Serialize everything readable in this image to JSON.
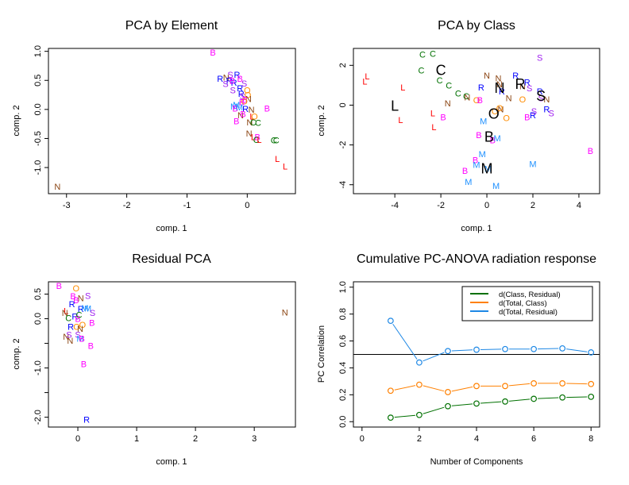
{
  "colors": {
    "B": "#ff00ff",
    "C": "#007000",
    "L": "#ff0000",
    "M": "#1e90ff",
    "N": "#8b4513",
    "O": "#ff8c00",
    "R": "#0000ff",
    "S": "#a020f0",
    "centroid": "#000000",
    "green_line": "#007000",
    "orange_line": "#ff8000",
    "blue_line": "#1e88e5"
  },
  "chart_data": [
    {
      "type": "scatter",
      "title": "PCA by Element",
      "xlabel": "comp. 1",
      "ylabel": "comp. 2",
      "xlim": [
        -3.3,
        0.8
      ],
      "ylim": [
        -1.45,
        1.05
      ],
      "xticks": [
        "-3",
        "-2",
        "-1",
        "0"
      ],
      "xtick_values": [
        -3,
        -2,
        -1,
        0
      ],
      "yticks": [
        "-1.0",
        "-0.5",
        "0.0",
        "0.5",
        "1.0"
      ],
      "ytick_values": [
        -1.0,
        -0.5,
        0.0,
        0.5,
        1.0
      ],
      "points": [
        {
          "label": "N",
          "x": -3.15,
          "y": -1.33
        },
        {
          "label": "B",
          "x": -0.57,
          "y": 0.98
        },
        {
          "label": "S",
          "x": -0.28,
          "y": 0.6
        },
        {
          "label": "R",
          "x": -0.17,
          "y": 0.6
        },
        {
          "label": "R",
          "x": -0.45,
          "y": 0.53
        },
        {
          "label": "N",
          "x": -0.35,
          "y": 0.55
        },
        {
          "label": "R",
          "x": -0.3,
          "y": 0.5
        },
        {
          "label": "S",
          "x": -0.36,
          "y": 0.44
        },
        {
          "label": "R",
          "x": -0.22,
          "y": 0.46
        },
        {
          "label": "B",
          "x": -0.12,
          "y": 0.53
        },
        {
          "label": "S",
          "x": -0.05,
          "y": 0.45
        },
        {
          "label": "B",
          "x": -0.25,
          "y": 0.5
        },
        {
          "label": "S",
          "x": -0.24,
          "y": 0.33
        },
        {
          "label": "R",
          "x": -0.12,
          "y": 0.37
        },
        {
          "label": "O",
          "x": 0.0,
          "y": 0.33
        },
        {
          "label": "R",
          "x": -0.1,
          "y": 0.27
        },
        {
          "label": "O",
          "x": 0.01,
          "y": 0.25
        },
        {
          "label": "S",
          "x": -0.08,
          "y": 0.23
        },
        {
          "label": "N",
          "x": 0.02,
          "y": 0.18
        },
        {
          "label": "B",
          "x": -0.04,
          "y": 0.17
        },
        {
          "label": "O",
          "x": -0.05,
          "y": 0.14
        },
        {
          "label": "B",
          "x": -0.09,
          "y": 0.13
        },
        {
          "label": "M",
          "x": -0.18,
          "y": 0.08
        },
        {
          "label": "M",
          "x": -0.22,
          "y": 0.05
        },
        {
          "label": "B",
          "x": -0.2,
          "y": 0.02
        },
        {
          "label": "M",
          "x": -0.13,
          "y": 0.04
        },
        {
          "label": "R",
          "x": -0.03,
          "y": 0.01
        },
        {
          "label": "N",
          "x": 0.07,
          "y": 0.0
        },
        {
          "label": "B",
          "x": 0.33,
          "y": 0.02
        },
        {
          "label": "N",
          "x": -0.11,
          "y": -0.1
        },
        {
          "label": "B",
          "x": -0.07,
          "y": -0.08
        },
        {
          "label": "L",
          "x": 0.08,
          "y": -0.12
        },
        {
          "label": "O",
          "x": 0.12,
          "y": -0.12
        },
        {
          "label": "B",
          "x": -0.18,
          "y": -0.2
        },
        {
          "label": "N",
          "x": 0.04,
          "y": -0.22
        },
        {
          "label": "C",
          "x": 0.1,
          "y": -0.22
        },
        {
          "label": "C",
          "x": 0.18,
          "y": -0.23
        },
        {
          "label": "N",
          "x": 0.03,
          "y": -0.41
        },
        {
          "label": "L",
          "x": 0.1,
          "y": -0.47
        },
        {
          "label": "B",
          "x": 0.17,
          "y": -0.47
        },
        {
          "label": "C",
          "x": 0.15,
          "y": -0.52
        },
        {
          "label": "L",
          "x": 0.2,
          "y": -0.52
        },
        {
          "label": "C",
          "x": 0.44,
          "y": -0.53
        },
        {
          "label": "C",
          "x": 0.48,
          "y": -0.53
        },
        {
          "label": "L",
          "x": 0.5,
          "y": -0.85
        },
        {
          "label": "L",
          "x": 0.63,
          "y": -0.98
        }
      ]
    },
    {
      "type": "scatter",
      "title": "PCA by Class",
      "xlabel": "comp. 1",
      "ylabel": "comp. 2",
      "xlim": [
        -5.8,
        4.9
      ],
      "ylim": [
        -4.45,
        2.85
      ],
      "xticks": [
        "-4",
        "-2",
        "0",
        "2",
        "4"
      ],
      "xtick_values": [
        -4,
        -2,
        0,
        2,
        4
      ],
      "yticks": [
        "-4",
        "-2",
        "0",
        "2"
      ],
      "ytick_values": [
        -4,
        -2,
        0,
        2
      ],
      "points": [
        {
          "label": "L",
          "x": -5.3,
          "y": 1.2
        },
        {
          "label": "L",
          "x": -5.2,
          "y": 1.45
        },
        {
          "label": "L",
          "x": -3.65,
          "y": 0.9
        },
        {
          "label": "L",
          "x": -3.75,
          "y": -0.75
        },
        {
          "label": "L",
          "x": -2.35,
          "y": -0.4
        },
        {
          "label": "L",
          "x": -2.3,
          "y": -1.1
        },
        {
          "label": "C",
          "x": -2.8,
          "y": 2.55
        },
        {
          "label": "C",
          "x": -2.35,
          "y": 2.6
        },
        {
          "label": "C",
          "x": -2.85,
          "y": 1.75
        },
        {
          "label": "C",
          "x": -2.05,
          "y": 1.25
        },
        {
          "label": "C",
          "x": -1.65,
          "y": 1.0
        },
        {
          "label": "C",
          "x": -1.25,
          "y": 0.6
        },
        {
          "label": "C",
          "x": -0.9,
          "y": 0.45
        },
        {
          "label": "N",
          "x": -1.7,
          "y": 0.1
        },
        {
          "label": "N",
          "x": -0.85,
          "y": 0.4
        },
        {
          "label": "N",
          "x": 0.0,
          "y": 1.5
        },
        {
          "label": "N",
          "x": 0.5,
          "y": 1.35
        },
        {
          "label": "N",
          "x": 0.55,
          "y": 1.05
        },
        {
          "label": "N",
          "x": 0.95,
          "y": 0.35
        },
        {
          "label": "N",
          "x": 1.55,
          "y": 0.95
        },
        {
          "label": "N",
          "x": 2.6,
          "y": 0.3
        },
        {
          "label": "N",
          "x": 0.6,
          "y": -0.2
        },
        {
          "label": "R",
          "x": -0.25,
          "y": 0.9
        },
        {
          "label": "R",
          "x": 0.65,
          "y": 0.7
        },
        {
          "label": "R",
          "x": 1.25,
          "y": 1.5
        },
        {
          "label": "R",
          "x": 1.75,
          "y": 1.15
        },
        {
          "label": "R",
          "x": 2.3,
          "y": 0.7
        },
        {
          "label": "R",
          "x": 2.6,
          "y": -0.2
        },
        {
          "label": "R",
          "x": 2.0,
          "y": -0.5
        },
        {
          "label": "S",
          "x": 2.3,
          "y": 2.4
        },
        {
          "label": "S",
          "x": 1.85,
          "y": 0.85
        },
        {
          "label": "S",
          "x": 2.35,
          "y": 0.35
        },
        {
          "label": "S",
          "x": 2.05,
          "y": -0.3
        },
        {
          "label": "S",
          "x": 2.8,
          "y": -0.4
        },
        {
          "label": "O",
          "x": -0.45,
          "y": 0.25
        },
        {
          "label": "O",
          "x": 0.35,
          "y": -0.3
        },
        {
          "label": "O",
          "x": 0.55,
          "y": -0.15
        },
        {
          "label": "O",
          "x": 0.85,
          "y": -0.65
        },
        {
          "label": "O",
          "x": 1.55,
          "y": 0.3
        },
        {
          "label": "B",
          "x": -0.3,
          "y": 0.25
        },
        {
          "label": "B",
          "x": -1.9,
          "y": -0.6
        },
        {
          "label": "B",
          "x": -0.35,
          "y": -1.5
        },
        {
          "label": "B",
          "x": 0.25,
          "y": -1.75
        },
        {
          "label": "B",
          "x": 1.75,
          "y": -0.6
        },
        {
          "label": "B",
          "x": -0.5,
          "y": -2.75
        },
        {
          "label": "B",
          "x": -0.95,
          "y": -3.3
        },
        {
          "label": "B",
          "x": 4.5,
          "y": -2.3
        },
        {
          "label": "M",
          "x": -0.15,
          "y": -0.8
        },
        {
          "label": "M",
          "x": 0.45,
          "y": -1.65
        },
        {
          "label": "M",
          "x": -0.2,
          "y": -2.45
        },
        {
          "label": "M",
          "x": -0.45,
          "y": -3.0
        },
        {
          "label": "M",
          "x": 0.05,
          "y": -3.2
        },
        {
          "label": "M",
          "x": -0.8,
          "y": -3.85
        },
        {
          "label": "M",
          "x": 0.4,
          "y": -4.05
        },
        {
          "label": "M",
          "x": 2.0,
          "y": -2.95
        }
      ],
      "centroids": [
        {
          "label": "L",
          "x": -4.0,
          "y": -0.05
        },
        {
          "label": "C",
          "x": -2.0,
          "y": 1.75
        },
        {
          "label": "N",
          "x": 0.55,
          "y": 0.85
        },
        {
          "label": "R",
          "x": 1.45,
          "y": 1.05
        },
        {
          "label": "S",
          "x": 2.35,
          "y": 0.45
        },
        {
          "label": "O",
          "x": 0.3,
          "y": -0.45
        },
        {
          "label": "B",
          "x": 0.1,
          "y": -1.6
        },
        {
          "label": "M",
          "x": 0.0,
          "y": -3.2
        }
      ]
    },
    {
      "type": "scatter",
      "title": "Residual PCA",
      "xlabel": "comp. 1",
      "ylabel": "comp. 2",
      "xlim": [
        -0.5,
        3.7
      ],
      "ylim": [
        -2.2,
        0.75
      ],
      "xticks": [
        "0",
        "1",
        "2",
        "3"
      ],
      "xtick_values": [
        0,
        1,
        2,
        3
      ],
      "yticks": [
        "-2.0",
        "-1.0",
        "0.0",
        "0.5"
      ],
      "ytick_values": [
        -2.0,
        -1.0,
        0.0,
        0.5
      ],
      "yminor_ticks": [
        -1.5,
        -0.5
      ],
      "points": [
        {
          "label": "B",
          "x": -0.32,
          "y": 0.67
        },
        {
          "label": "O",
          "x": -0.03,
          "y": 0.62
        },
        {
          "label": "B",
          "x": -0.08,
          "y": 0.46
        },
        {
          "label": "N",
          "x": 0.05,
          "y": 0.42
        },
        {
          "label": "S",
          "x": 0.17,
          "y": 0.47
        },
        {
          "label": "B",
          "x": -0.03,
          "y": 0.38
        },
        {
          "label": "R",
          "x": -0.1,
          "y": 0.3
        },
        {
          "label": "R",
          "x": 0.05,
          "y": 0.2
        },
        {
          "label": "M",
          "x": 0.12,
          "y": 0.22
        },
        {
          "label": "M",
          "x": 0.17,
          "y": 0.21
        },
        {
          "label": "L",
          "x": -0.2,
          "y": 0.16
        },
        {
          "label": "N",
          "x": -0.22,
          "y": 0.12
        },
        {
          "label": "S",
          "x": 0.25,
          "y": 0.12
        },
        {
          "label": "C",
          "x": -0.16,
          "y": 0.02
        },
        {
          "label": "R",
          "x": -0.05,
          "y": 0.05
        },
        {
          "label": "B",
          "x": 0.0,
          "y": 0.0
        },
        {
          "label": "C",
          "x": 0.02,
          "y": 0.08
        },
        {
          "label": "B",
          "x": 0.24,
          "y": -0.08
        },
        {
          "label": "R",
          "x": -0.12,
          "y": -0.16
        },
        {
          "label": "O",
          "x": -0.02,
          "y": -0.16
        },
        {
          "label": "O",
          "x": 0.08,
          "y": -0.12
        },
        {
          "label": "N",
          "x": 0.04,
          "y": -0.2
        },
        {
          "label": "N",
          "x": -0.2,
          "y": -0.36
        },
        {
          "label": "S",
          "x": -0.15,
          "y": -0.32
        },
        {
          "label": "N",
          "x": -0.13,
          "y": -0.44
        },
        {
          "label": "S",
          "x": 0.0,
          "y": -0.32
        },
        {
          "label": "M",
          "x": 0.04,
          "y": -0.4
        },
        {
          "label": "B",
          "x": 0.07,
          "y": -0.4
        },
        {
          "label": "B",
          "x": 0.22,
          "y": -0.55
        },
        {
          "label": "B",
          "x": 0.1,
          "y": -0.92
        },
        {
          "label": "R",
          "x": 0.15,
          "y": -2.05
        },
        {
          "label": "N",
          "x": 3.52,
          "y": 0.13
        }
      ]
    },
    {
      "type": "line",
      "title": "Cumulative PC-ANOVA radiation response",
      "xlabel": "Number of Components",
      "ylabel": "PC Correlation",
      "xlim": [
        -0.3,
        8.3
      ],
      "ylim": [
        -0.04,
        1.04
      ],
      "xticks": [
        "0",
        "2",
        "4",
        "6",
        "8"
      ],
      "xtick_values": [
        0,
        2,
        4,
        6,
        8
      ],
      "yticks": [
        "0.0",
        "0.2",
        "0.4",
        "0.6",
        "0.8",
        "1.0"
      ],
      "ytick_values": [
        0.0,
        0.2,
        0.4,
        0.6,
        0.8,
        1.0
      ],
      "hline": 0.5,
      "x": [
        1,
        2,
        3,
        4,
        5,
        6,
        7,
        8
      ],
      "legend_position": "top-right",
      "series": [
        {
          "name": "d(Class, Residual)",
          "color_key": "green_line",
          "values": [
            0.03,
            0.05,
            0.115,
            0.135,
            0.15,
            0.17,
            0.18,
            0.185
          ]
        },
        {
          "name": "d(Total, Class)",
          "color_key": "orange_line",
          "values": [
            0.23,
            0.275,
            0.22,
            0.265,
            0.265,
            0.285,
            0.285,
            0.28
          ]
        },
        {
          "name": "d(Total, Residual)",
          "color_key": "blue_line",
          "values": [
            0.75,
            0.44,
            0.525,
            0.535,
            0.54,
            0.54,
            0.545,
            0.515
          ]
        }
      ]
    }
  ]
}
